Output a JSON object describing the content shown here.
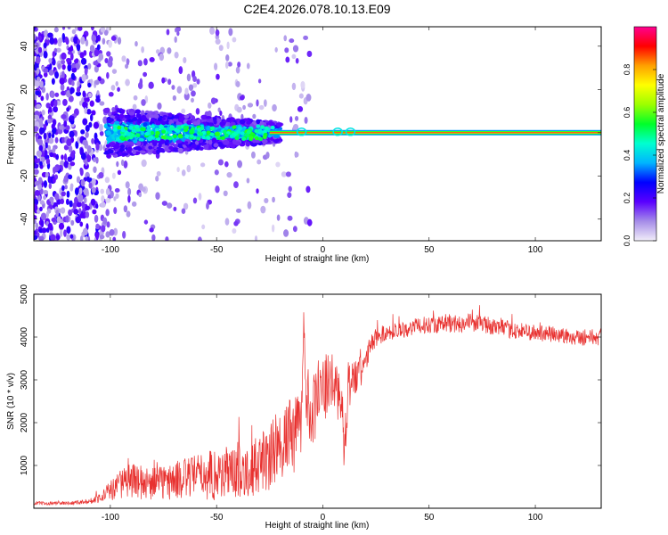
{
  "title": "C2E4.2026.078.10.13.E09",
  "chart_data": [
    {
      "type": "heatmap",
      "title": "C2E4.2026.078.10.13.E09",
      "xlabel": "Height of straight line (km)",
      "ylabel": "Frequency (Hz)",
      "xlim": [
        -136,
        131
      ],
      "ylim": [
        -50,
        49
      ],
      "xticks": [
        -100,
        -50,
        0,
        50,
        100
      ],
      "yticks": [
        -40,
        -20,
        0,
        20,
        40
      ],
      "colorbar": {
        "label": "Normalized spectral amplitude",
        "range": [
          0,
          1
        ],
        "ticks": [
          0.0,
          0.2,
          0.4,
          0.6,
          0.8
        ],
        "colors": [
          "#f2eef9",
          "#a58ce8",
          "#5a00ff",
          "#0000ff",
          "#00b4ff",
          "#00ffd0",
          "#00ff2a",
          "#9cff00",
          "#ffff00",
          "#ffa000",
          "#ff0000",
          "#ff0090"
        ]
      },
      "description_values": {
        "carrier_frequency_hz": 0,
        "noise_region_end_km": -100,
        "spread_region": [
          -100,
          -20
        ],
        "narrow_line_from_km": -20
      }
    },
    {
      "type": "line",
      "xlabel": "Height of straight line (km)",
      "ylabel": "SNR (10 * v/v)",
      "xlim": [
        -136,
        131
      ],
      "ylim": [
        0,
        5000
      ],
      "xticks": [
        -100,
        -50,
        0,
        50,
        100
      ],
      "yticks": [
        1000,
        2000,
        3000,
        4000,
        5000
      ],
      "series": [
        {
          "name": "SNR",
          "color": "#e8312f",
          "x": [
            -136,
            -120,
            -110,
            -105,
            -100,
            -95,
            -90,
            -80,
            -70,
            -60,
            -50,
            -40,
            -30,
            -25,
            -20,
            -15,
            -10,
            -9,
            -8,
            -5,
            -2,
            0,
            3,
            6,
            9,
            10,
            12,
            15,
            18,
            20,
            22,
            25,
            30,
            40,
            50,
            60,
            70,
            80,
            90,
            100,
            110,
            120,
            131
          ],
          "values": [
            120,
            120,
            160,
            250,
            400,
            580,
            650,
            560,
            640,
            760,
            800,
            850,
            1000,
            1150,
            1550,
            1650,
            1900,
            4500,
            2600,
            2300,
            2600,
            2700,
            2900,
            2900,
            2400,
            1200,
            2900,
            3050,
            3150,
            3400,
            3750,
            4000,
            4100,
            4200,
            4300,
            4300,
            4350,
            4250,
            4150,
            4100,
            4050,
            4000,
            4000
          ],
          "noise_amplitude": [
            40,
            40,
            60,
            120,
            250,
            350,
            400,
            400,
            450,
            500,
            650,
            600,
            700,
            800,
            900,
            900,
            900,
            500,
            900,
            800,
            900,
            800,
            700,
            700,
            700,
            400,
            600,
            500,
            400,
            300,
            250,
            220,
            200,
            200,
            200,
            220,
            220,
            200,
            200,
            200,
            200,
            200,
            200
          ]
        }
      ]
    }
  ]
}
